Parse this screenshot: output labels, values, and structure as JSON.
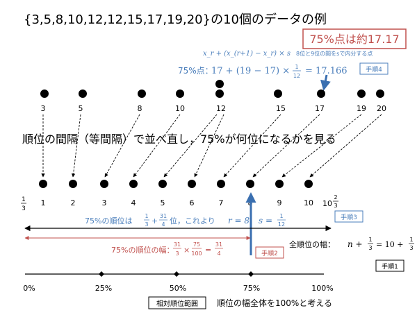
{
  "title": "{3,5,8,10,12,12,15,17,19,20}の10個のデータの例",
  "result_box": "75%点は約17.17",
  "formula_general": "x_r + (x_(r+1) − x_r) × s",
  "internal_division_note": "8位と9位の間をsで内分する点",
  "calc": {
    "label": "75%点：",
    "expr": "17 + (19 − 17) ×",
    "frac_num": "1",
    "frac_den": "12",
    "result": "= 17.16",
    "result_dot": "6"
  },
  "steps": {
    "step1": "手順1",
    "step2": "手順2",
    "step3": "手順3",
    "step4": "手順4"
  },
  "data_values": [
    "3",
    "5",
    "8",
    "10",
    "12",
    "12",
    "15",
    "17",
    "19",
    "20"
  ],
  "reorder_text": "順位の間隔（等間隔）で並べ直し，75%が何位になるかを見る",
  "rank_labels": [
    "1",
    "2",
    "3",
    "4",
    "5",
    "6",
    "7",
    "8",
    "9",
    "10"
  ],
  "rank_left_frac": {
    "num": "1",
    "den": "3"
  },
  "rank_right_label": {
    "whole": "10",
    "num": "2",
    "den": "3"
  },
  "rank75": {
    "prefix": "75%の順位は",
    "n1": "1",
    "d1": "3",
    "plus": "+",
    "n2": "31",
    "d2": "4",
    "suffix": "位，これより",
    "r_expr": "r = 8",
    "s_expr": "s =",
    "s_num": "1",
    "s_den": "12"
  },
  "width75": {
    "prefix": "75%の順位の幅：",
    "n1": "31",
    "d1": "3",
    "times": "×",
    "n2": "75",
    "d2": "100",
    "eq": "=",
    "n3": "31",
    "d3": "4"
  },
  "total_width": {
    "prefix": "全順位の幅：",
    "expr": "n +",
    "n1": "1",
    "d1": "3",
    "mid": "= 10 +",
    "n2": "1",
    "d2": "3"
  },
  "percent_labels": [
    "0%",
    "25%",
    "50%",
    "75%",
    "100%"
  ],
  "relative_rank_range": "相対順位範囲",
  "percent_note": "順位の幅全体を100%と考える",
  "colors": {
    "blue": "#4a7ebb",
    "red": "#c0504d",
    "arrow_blue": "#3a6fb0"
  }
}
